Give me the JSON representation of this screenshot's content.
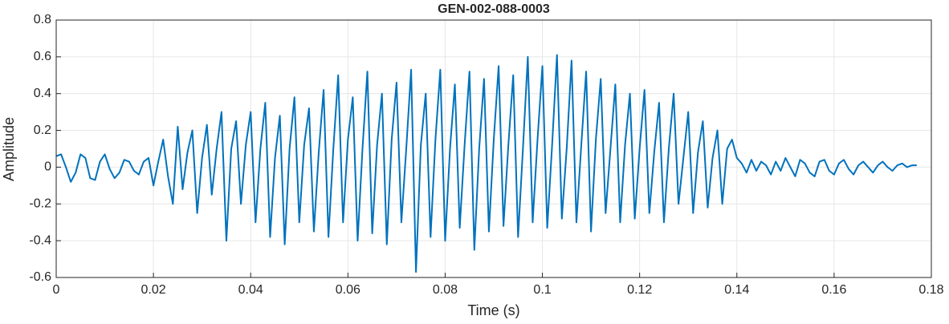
{
  "chart_data": {
    "type": "line",
    "title": "GEN-002-088-0003",
    "xlabel": "Time (s)",
    "ylabel": "Amplitude",
    "xlim": [
      0,
      0.18
    ],
    "xticks": [
      0,
      0.02,
      0.04,
      0.06,
      0.08,
      0.1,
      0.12,
      0.14,
      0.16,
      0.18
    ],
    "ylim": [
      -0.6,
      0.8
    ],
    "yticks": [
      -0.6,
      -0.4,
      -0.2,
      0,
      0.2,
      0.4,
      0.6,
      0.8
    ],
    "grid": true,
    "x": [
      0,
      0.001,
      0.002,
      0.003,
      0.004,
      0.005,
      0.006,
      0.007,
      0.008,
      0.009,
      0.01,
      0.011,
      0.012,
      0.013,
      0.014,
      0.015,
      0.016,
      0.017,
      0.018,
      0.019,
      0.02,
      0.021,
      0.022,
      0.023,
      0.024,
      0.025,
      0.026,
      0.027,
      0.028,
      0.029,
      0.03,
      0.031,
      0.032,
      0.033,
      0.034,
      0.035,
      0.036,
      0.037,
      0.038,
      0.039,
      0.04,
      0.041,
      0.042,
      0.043,
      0.044,
      0.045,
      0.046,
      0.047,
      0.048,
      0.049,
      0.05,
      0.051,
      0.052,
      0.053,
      0.054,
      0.055,
      0.056,
      0.057,
      0.058,
      0.059,
      0.06,
      0.061,
      0.062,
      0.063,
      0.064,
      0.065,
      0.066,
      0.067,
      0.068,
      0.069,
      0.07,
      0.071,
      0.072,
      0.073,
      0.074,
      0.075,
      0.076,
      0.077,
      0.078,
      0.079,
      0.08,
      0.081,
      0.082,
      0.083,
      0.084,
      0.085,
      0.086,
      0.087,
      0.088,
      0.089,
      0.09,
      0.091,
      0.092,
      0.093,
      0.094,
      0.095,
      0.096,
      0.097,
      0.098,
      0.099,
      0.1,
      0.101,
      0.102,
      0.103,
      0.104,
      0.105,
      0.106,
      0.107,
      0.108,
      0.109,
      0.11,
      0.111,
      0.112,
      0.113,
      0.114,
      0.115,
      0.116,
      0.117,
      0.118,
      0.119,
      0.12,
      0.121,
      0.122,
      0.123,
      0.124,
      0.125,
      0.126,
      0.127,
      0.128,
      0.129,
      0.13,
      0.131,
      0.132,
      0.133,
      0.134,
      0.135,
      0.136,
      0.137,
      0.138,
      0.139,
      0.14,
      0.141,
      0.142,
      0.143,
      0.144,
      0.145,
      0.146,
      0.147,
      0.148,
      0.149,
      0.15,
      0.151,
      0.152,
      0.153,
      0.154,
      0.155,
      0.156,
      0.157,
      0.158,
      0.159,
      0.16,
      0.161,
      0.162,
      0.163,
      0.164,
      0.165,
      0.166,
      0.167,
      0.168,
      0.169,
      0.17,
      0.171,
      0.172,
      0.173,
      0.174,
      0.175,
      0.176,
      0.177
    ],
    "series": [
      {
        "name": "Amplitude",
        "color": "#0072bd",
        "values": [
          0.06,
          0.07,
          0,
          -0.08,
          -0.03,
          0.07,
          0.05,
          -0.06,
          -0.07,
          0.03,
          0.07,
          -0.01,
          -0.06,
          -0.03,
          0.04,
          0.03,
          -0.02,
          -0.04,
          0.03,
          0.05,
          -0.1,
          0.03,
          0.15,
          -0.05,
          -0.2,
          0.22,
          -0.12,
          0.08,
          0.2,
          -0.25,
          0.05,
          0.23,
          -0.15,
          0.1,
          0.3,
          -0.4,
          0.1,
          0.25,
          -0.2,
          0.12,
          0.3,
          -0.3,
          0.1,
          0.35,
          -0.38,
          0.05,
          0.28,
          -0.42,
          0.1,
          0.38,
          -0.3,
          0.12,
          0.32,
          -0.35,
          0.08,
          0.42,
          -0.38,
          0.1,
          0.5,
          -0.3,
          0.15,
          0.38,
          -0.4,
          0.1,
          0.52,
          -0.36,
          0.12,
          0.4,
          -0.42,
          0.15,
          0.46,
          -0.3,
          0.1,
          0.53,
          -0.57,
          0.12,
          0.4,
          -0.38,
          0.15,
          0.53,
          -0.4,
          0.1,
          0.45,
          -0.33,
          0.12,
          0.52,
          -0.45,
          0.1,
          0.48,
          -0.35,
          0.15,
          0.55,
          -0.32,
          0.12,
          0.5,
          -0.38,
          0.1,
          0.6,
          -0.3,
          0.15,
          0.55,
          -0.33,
          0.12,
          0.61,
          -0.28,
          0.1,
          0.58,
          -0.3,
          0.12,
          0.52,
          -0.35,
          0.15,
          0.48,
          -0.25,
          0.1,
          0.45,
          -0.3,
          0.12,
          0.4,
          -0.28,
          0.1,
          0.42,
          -0.25,
          0.08,
          0.35,
          -0.3,
          0.1,
          0.4,
          -0.2,
          0.05,
          0.3,
          -0.25,
          0.08,
          0.25,
          -0.22,
          0.05,
          0.2,
          -0.2,
          0.1,
          0.15,
          0.05,
          0.02,
          -0.03,
          0.04,
          -0.02,
          0.03,
          0.01,
          -0.04,
          0.03,
          -0.02,
          0.05,
          0,
          -0.05,
          0.04,
          0.02,
          -0.03,
          -0.05,
          0.03,
          0.04,
          -0.02,
          -0.04,
          0.02,
          0.04,
          -0.01,
          -0.04,
          0.01,
          0.03,
          0,
          -0.03,
          0.01,
          0.03,
          0,
          -0.02,
          0.01,
          0.02,
          0,
          0.01,
          0.01
        ]
      }
    ]
  }
}
